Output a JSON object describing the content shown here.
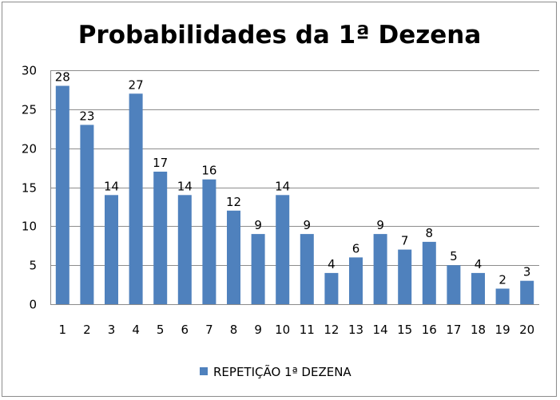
{
  "chart_data": {
    "type": "bar",
    "title": "Probabilidades da 1ª Dezena",
    "categories": [
      "1",
      "2",
      "3",
      "4",
      "5",
      "6",
      "7",
      "8",
      "9",
      "10",
      "11",
      "12",
      "13",
      "14",
      "15",
      "16",
      "17",
      "18",
      "19",
      "20"
    ],
    "series": [
      {
        "name": "REPETIÇÃO 1ª DEZENA",
        "color": "#4f81bd",
        "values": [
          28,
          23,
          14,
          27,
          17,
          14,
          16,
          12,
          9,
          14,
          9,
          4,
          6,
          9,
          7,
          8,
          5,
          4,
          2,
          3
        ]
      }
    ],
    "ylim": [
      0,
      30
    ],
    "yticks": [
      0,
      5,
      10,
      15,
      20,
      25,
      30
    ],
    "grid": true,
    "data_labels": true,
    "legend_position": "bottom"
  }
}
